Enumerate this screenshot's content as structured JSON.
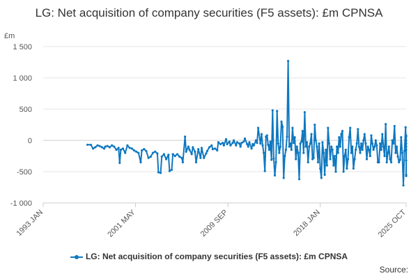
{
  "chart_data": {
    "type": "line",
    "title": "LG: Net acquisition of company securities (F5 assets): £m CPNSA",
    "ylabel": "£m",
    "ylim": [
      -1000,
      1500
    ],
    "yticks": [
      -1000,
      -500,
      0,
      500,
      1000,
      1500
    ],
    "ytick_labels": [
      "-1 000",
      "-500",
      "0",
      "500",
      "1 000",
      "1 500"
    ],
    "xlim": [
      1993.0,
      2025.75
    ],
    "xticks": [
      {
        "label": "1993 JAN",
        "year": 1993.0
      },
      {
        "label": "2001 MAY",
        "year": 2001.33
      },
      {
        "label": "2009 SEP",
        "year": 2009.67
      },
      {
        "label": "2018 JAN",
        "year": 2018.0
      },
      {
        "label": "2025 OCT",
        "year": 2025.75
      }
    ],
    "grid": true,
    "legend_position": "bottom",
    "color": "#0f78c0",
    "series": [
      {
        "name": "LG: Net acquisition of company securities (F5 assets): £m CPNSA",
        "points": [
          [
            1997.0,
            -70
          ],
          [
            1997.3,
            -70
          ],
          [
            1997.5,
            -130
          ],
          [
            1997.7,
            -110
          ],
          [
            1997.9,
            -80
          ],
          [
            1998.1,
            -90
          ],
          [
            1998.3,
            -110
          ],
          [
            1998.5,
            -130
          ],
          [
            1998.6,
            -100
          ],
          [
            1998.8,
            -90
          ],
          [
            1999.0,
            -110
          ],
          [
            1999.2,
            -80
          ],
          [
            1999.4,
            -100
          ],
          [
            1999.6,
            -150
          ],
          [
            1999.8,
            -120
          ],
          [
            1999.9,
            -360
          ],
          [
            2000.0,
            -150
          ],
          [
            2000.2,
            -130
          ],
          [
            2000.4,
            -200
          ],
          [
            2000.6,
            -80
          ],
          [
            2000.8,
            -120
          ],
          [
            2001.0,
            -130
          ],
          [
            2001.2,
            -160
          ],
          [
            2001.4,
            -180
          ],
          [
            2001.6,
            -200
          ],
          [
            2001.8,
            -350
          ],
          [
            2001.9,
            -160
          ],
          [
            2002.1,
            -140
          ],
          [
            2002.3,
            -170
          ],
          [
            2002.5,
            -280
          ],
          [
            2002.7,
            -260
          ],
          [
            2002.9,
            -200
          ],
          [
            2003.1,
            -180
          ],
          [
            2003.3,
            -210
          ],
          [
            2003.4,
            -510
          ],
          [
            2003.6,
            -520
          ],
          [
            2003.7,
            -260
          ],
          [
            2003.9,
            -220
          ],
          [
            2004.1,
            -300
          ],
          [
            2004.3,
            -230
          ],
          [
            2004.4,
            -490
          ],
          [
            2004.6,
            -470
          ],
          [
            2004.7,
            -220
          ],
          [
            2004.9,
            -250
          ],
          [
            2005.1,
            -220
          ],
          [
            2005.3,
            -260
          ],
          [
            2005.5,
            -280
          ],
          [
            2005.6,
            -350
          ],
          [
            2005.8,
            60
          ],
          [
            2005.9,
            -180
          ],
          [
            2006.1,
            -100
          ],
          [
            2006.2,
            -150
          ],
          [
            2006.4,
            -220
          ],
          [
            2006.5,
            -110
          ],
          [
            2006.7,
            -180
          ],
          [
            2006.8,
            -350
          ],
          [
            2007.0,
            -140
          ],
          [
            2007.2,
            -280
          ],
          [
            2007.3,
            -120
          ],
          [
            2007.5,
            -280
          ],
          [
            2007.7,
            -210
          ],
          [
            2007.8,
            -170
          ],
          [
            2008.0,
            -110
          ],
          [
            2008.2,
            -80
          ],
          [
            2008.3,
            -140
          ],
          [
            2008.5,
            -130
          ],
          [
            2008.7,
            -160
          ],
          [
            2008.8,
            -30
          ],
          [
            2009.0,
            -60
          ],
          [
            2009.2,
            -40
          ],
          [
            2009.3,
            -80
          ],
          [
            2009.5,
            20
          ],
          [
            2009.6,
            -60
          ],
          [
            2009.8,
            -20
          ],
          [
            2009.9,
            -80
          ],
          [
            2010.1,
            -40
          ],
          [
            2010.2,
            0
          ],
          [
            2010.4,
            -80
          ],
          [
            2010.5,
            -30
          ],
          [
            2010.7,
            -50
          ],
          [
            2010.8,
            -100
          ],
          [
            2010.9,
            -40
          ],
          [
            2011.1,
            -20
          ],
          [
            2011.2,
            30
          ],
          [
            2011.4,
            -60
          ],
          [
            2011.5,
            -100
          ],
          [
            2011.6,
            -30
          ],
          [
            2011.8,
            -130
          ],
          [
            2011.9,
            -60
          ],
          [
            2012.0,
            -80
          ],
          [
            2012.2,
            0
          ],
          [
            2012.3,
            -40
          ],
          [
            2012.4,
            200
          ],
          [
            2012.6,
            -50
          ],
          [
            2012.7,
            100
          ],
          [
            2012.8,
            -80
          ],
          [
            2012.9,
            -200
          ],
          [
            2013.0,
            -490
          ],
          [
            2013.1,
            60
          ],
          [
            2013.2,
            80
          ],
          [
            2013.3,
            -70
          ],
          [
            2013.4,
            -150
          ],
          [
            2013.5,
            -20
          ],
          [
            2013.6,
            -310
          ],
          [
            2013.7,
            480
          ],
          [
            2013.8,
            -290
          ],
          [
            2013.9,
            -560
          ],
          [
            2014.0,
            -350
          ],
          [
            2014.1,
            470
          ],
          [
            2014.2,
            -50
          ],
          [
            2014.3,
            -200
          ],
          [
            2014.4,
            -100
          ],
          [
            2014.5,
            300
          ],
          [
            2014.6,
            220
          ],
          [
            2014.7,
            -600
          ],
          [
            2014.8,
            -250
          ],
          [
            2014.9,
            -150
          ],
          [
            2015.0,
            60
          ],
          [
            2015.1,
            1270
          ],
          [
            2015.2,
            -100
          ],
          [
            2015.3,
            -50
          ],
          [
            2015.4,
            -150
          ],
          [
            2015.5,
            200
          ],
          [
            2015.6,
            -40
          ],
          [
            2015.7,
            50
          ],
          [
            2015.8,
            -300
          ],
          [
            2015.9,
            -100
          ],
          [
            2016.0,
            -200
          ],
          [
            2016.1,
            -620
          ],
          [
            2016.2,
            -50
          ],
          [
            2016.3,
            -20
          ],
          [
            2016.4,
            150
          ],
          [
            2016.5,
            -200
          ],
          [
            2016.6,
            450
          ],
          [
            2016.7,
            -100
          ],
          [
            2016.8,
            -30
          ],
          [
            2016.9,
            -350
          ],
          [
            2017.0,
            -100
          ],
          [
            2017.1,
            -50
          ],
          [
            2017.2,
            100
          ],
          [
            2017.3,
            -300
          ],
          [
            2017.4,
            -280
          ],
          [
            2017.5,
            250
          ],
          [
            2017.6,
            0
          ],
          [
            2017.7,
            -100
          ],
          [
            2017.8,
            -350
          ],
          [
            2017.9,
            -50
          ],
          [
            2018.0,
            -450
          ],
          [
            2018.1,
            -600
          ],
          [
            2018.2,
            -30
          ],
          [
            2018.3,
            -200
          ],
          [
            2018.4,
            -550
          ],
          [
            2018.5,
            -150
          ],
          [
            2018.6,
            -400
          ],
          [
            2018.7,
            200
          ],
          [
            2018.8,
            -50
          ],
          [
            2018.9,
            -300
          ],
          [
            2019.0,
            -100
          ],
          [
            2019.1,
            -150
          ],
          [
            2019.2,
            -400
          ],
          [
            2019.3,
            -250
          ],
          [
            2019.4,
            -500
          ],
          [
            2019.5,
            -100
          ],
          [
            2019.6,
            -200
          ],
          [
            2019.7,
            50
          ],
          [
            2019.8,
            -100
          ],
          [
            2019.9,
            100
          ],
          [
            2020.0,
            150
          ],
          [
            2020.1,
            -500
          ],
          [
            2020.2,
            -250
          ],
          [
            2020.3,
            -150
          ],
          [
            2020.4,
            -450
          ],
          [
            2020.5,
            -300
          ],
          [
            2020.6,
            50
          ],
          [
            2020.7,
            200
          ],
          [
            2020.8,
            -200
          ],
          [
            2020.9,
            -100
          ],
          [
            2021.0,
            -450
          ],
          [
            2021.1,
            -300
          ],
          [
            2021.2,
            -150
          ],
          [
            2021.3,
            -50
          ],
          [
            2021.4,
            180
          ],
          [
            2021.5,
            -100
          ],
          [
            2021.6,
            -200
          ],
          [
            2021.7,
            -50
          ],
          [
            2021.8,
            -150
          ],
          [
            2021.9,
            0
          ],
          [
            2022.0,
            100
          ],
          [
            2022.1,
            -50
          ],
          [
            2022.2,
            -300
          ],
          [
            2022.3,
            -100
          ],
          [
            2022.4,
            -150
          ],
          [
            2022.5,
            -250
          ],
          [
            2022.6,
            80
          ],
          [
            2022.7,
            -50
          ],
          [
            2022.8,
            -150
          ],
          [
            2022.9,
            -100
          ],
          [
            2023.0,
            0
          ],
          [
            2023.1,
            -80
          ],
          [
            2023.2,
            -350
          ],
          [
            2023.3,
            -350
          ],
          [
            2023.4,
            -50
          ],
          [
            2023.5,
            -150
          ],
          [
            2023.6,
            100
          ],
          [
            2023.7,
            -100
          ],
          [
            2023.8,
            -250
          ],
          [
            2023.9,
            260
          ],
          [
            2024.0,
            -350
          ],
          [
            2024.1,
            -200
          ],
          [
            2024.2,
            -100
          ],
          [
            2024.3,
            -300
          ],
          [
            2024.4,
            -350
          ],
          [
            2024.5,
            0
          ],
          [
            2024.6,
            -50
          ],
          [
            2024.7,
            230
          ],
          [
            2024.8,
            -200
          ],
          [
            2024.9,
            -100
          ],
          [
            2025.0,
            -260
          ],
          [
            2025.1,
            -350
          ],
          [
            2025.2,
            -310
          ],
          [
            2025.3,
            50
          ],
          [
            2025.4,
            -200
          ],
          [
            2025.5,
            -720
          ],
          [
            2025.6,
            -170
          ],
          [
            2025.7,
            210
          ],
          [
            2025.8,
            -150
          ],
          [
            2025.9,
            -100
          ],
          [
            2026.0,
            60
          ],
          [
            2026.1,
            -570
          ],
          [
            2026.2,
            -550
          ],
          [
            2026.3,
            0
          ],
          [
            2026.4,
            -100
          ],
          [
            2026.5,
            -320
          ],
          [
            2026.6,
            -50
          ],
          [
            2026.7,
            80
          ]
        ]
      }
    ]
  },
  "legend": {
    "label": "LG: Net acquisition of company securities (F5 assets): £m CPNSA"
  },
  "source_label": "Source:"
}
